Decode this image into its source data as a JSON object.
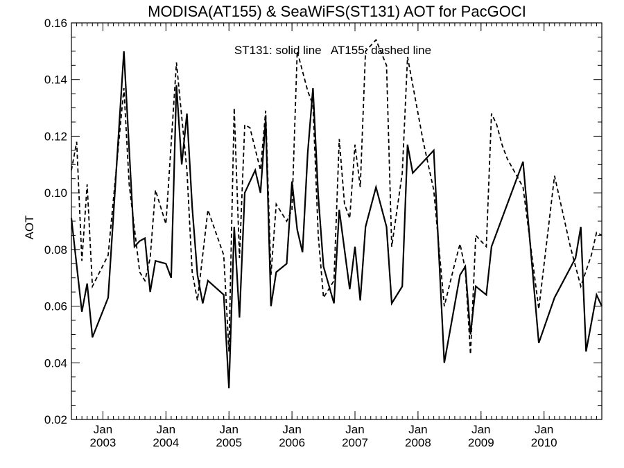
{
  "chart_data": {
    "type": "line",
    "title": "MODISA(AT155) & SeaWiFS(ST131)  AOT for PacGOCI",
    "ylabel": "AOT",
    "annotation": "ST131: solid line   AT155: dashed line",
    "ylim": [
      0.02,
      0.16
    ],
    "y_ticks": [
      "0.02",
      "0.04",
      "0.06",
      "0.08",
      "0.10",
      "0.12",
      "0.14",
      "0.16"
    ],
    "xlim": [
      "2002-07",
      "2010-12"
    ],
    "x_ticks": [
      {
        "month": "Jan",
        "year": "2003",
        "date": "2003-01"
      },
      {
        "month": "Jan",
        "year": "2004",
        "date": "2004-01"
      },
      {
        "month": "Jan",
        "year": "2005",
        "date": "2005-01"
      },
      {
        "month": "Jan",
        "year": "2006",
        "date": "2006-01"
      },
      {
        "month": "Jan",
        "year": "2007",
        "date": "2007-01"
      },
      {
        "month": "Jan",
        "year": "2008",
        "date": "2008-01"
      },
      {
        "month": "Jan",
        "year": "2009",
        "date": "2009-01"
      },
      {
        "month": "Jan",
        "year": "2010",
        "date": "2010-01"
      }
    ],
    "series": [
      {
        "style": "solid",
        "color": "#000000",
        "points": [
          [
            "2002-07",
            0.091
          ],
          [
            "2002-09",
            0.058
          ],
          [
            "2002-10",
            0.068
          ],
          [
            "2002-11",
            0.049
          ],
          [
            "2003-02",
            0.063
          ],
          [
            "2003-05",
            0.15
          ],
          [
            "2003-07",
            0.081
          ],
          [
            "2003-08",
            0.083
          ],
          [
            "2003-09",
            0.084
          ],
          [
            "2003-10",
            0.065
          ],
          [
            "2003-11",
            0.076
          ],
          [
            "2004-01",
            0.075
          ],
          [
            "2004-02",
            0.07
          ],
          [
            "2004-03",
            0.138
          ],
          [
            "2004-04",
            0.11
          ],
          [
            "2004-05",
            0.128
          ],
          [
            "2004-06",
            0.095
          ],
          [
            "2004-07",
            0.071
          ],
          [
            "2004-08",
            0.061
          ],
          [
            "2004-09",
            0.069
          ],
          [
            "2004-12",
            0.064
          ],
          [
            "2005-01",
            0.031
          ],
          [
            "2005-02",
            0.088
          ],
          [
            "2005-03",
            0.056
          ],
          [
            "2005-04",
            0.1
          ],
          [
            "2005-06",
            0.108
          ],
          [
            "2005-07",
            0.1
          ],
          [
            "2005-08",
            0.126
          ],
          [
            "2005-09",
            0.06
          ],
          [
            "2005-10",
            0.072
          ],
          [
            "2005-12",
            0.075
          ],
          [
            "2006-01",
            0.104
          ],
          [
            "2006-02",
            0.087
          ],
          [
            "2006-03",
            0.079
          ],
          [
            "2006-04",
            0.114
          ],
          [
            "2006-05",
            0.137
          ],
          [
            "2006-06",
            0.099
          ],
          [
            "2006-07",
            0.074
          ],
          [
            "2006-09",
            0.061
          ],
          [
            "2006-10",
            0.094
          ],
          [
            "2006-12",
            0.066
          ],
          [
            "2007-01",
            0.081
          ],
          [
            "2007-02",
            0.062
          ],
          [
            "2007-03",
            0.088
          ],
          [
            "2007-05",
            0.102
          ],
          [
            "2007-07",
            0.088
          ],
          [
            "2007-08",
            0.061
          ],
          [
            "2007-10",
            0.067
          ],
          [
            "2007-11",
            0.117
          ],
          [
            "2007-12",
            0.107
          ],
          [
            "2008-04",
            0.115
          ],
          [
            "2008-06",
            0.04
          ],
          [
            "2008-09",
            0.071
          ],
          [
            "2008-10",
            0.074
          ],
          [
            "2008-11",
            0.05
          ],
          [
            "2008-12",
            0.067
          ],
          [
            "2009-02",
            0.064
          ],
          [
            "2009-03",
            0.081
          ],
          [
            "2009-09",
            0.111
          ],
          [
            "2009-12",
            0.047
          ],
          [
            "2010-03",
            0.063
          ],
          [
            "2010-07",
            0.077
          ],
          [
            "2010-08",
            0.088
          ],
          [
            "2010-09",
            0.044
          ],
          [
            "2010-11",
            0.064
          ],
          [
            "2010-12",
            0.06
          ]
        ]
      },
      {
        "style": "dashed",
        "color": "#000000",
        "points": [
          [
            "2002-07",
            0.108
          ],
          [
            "2002-08",
            0.118
          ],
          [
            "2002-09",
            0.076
          ],
          [
            "2002-10",
            0.103
          ],
          [
            "2002-11",
            0.067
          ],
          [
            "2003-02",
            0.078
          ],
          [
            "2003-05",
            0.137
          ],
          [
            "2003-06",
            0.103
          ],
          [
            "2003-08",
            0.072
          ],
          [
            "2003-09",
            0.069
          ],
          [
            "2003-10",
            0.077
          ],
          [
            "2003-11",
            0.101
          ],
          [
            "2004-01",
            0.089
          ],
          [
            "2004-03",
            0.146
          ],
          [
            "2004-05",
            0.108
          ],
          [
            "2004-06",
            0.072
          ],
          [
            "2004-07",
            0.062
          ],
          [
            "2004-09",
            0.094
          ],
          [
            "2004-12",
            0.078
          ],
          [
            "2005-01",
            0.044
          ],
          [
            "2005-02",
            0.13
          ],
          [
            "2005-03",
            0.077
          ],
          [
            "2005-04",
            0.124
          ],
          [
            "2005-05",
            0.123
          ],
          [
            "2005-07",
            0.108
          ],
          [
            "2005-08",
            0.129
          ],
          [
            "2005-09",
            0.071
          ],
          [
            "2005-10",
            0.096
          ],
          [
            "2005-12",
            0.09
          ],
          [
            "2006-01",
            0.094
          ],
          [
            "2006-02",
            0.15
          ],
          [
            "2006-04",
            0.136
          ],
          [
            "2006-05",
            0.131
          ],
          [
            "2006-06",
            0.085
          ],
          [
            "2006-07",
            0.063
          ],
          [
            "2006-09",
            0.069
          ],
          [
            "2006-10",
            0.119
          ],
          [
            "2006-11",
            0.096
          ],
          [
            "2006-12",
            0.091
          ],
          [
            "2007-01",
            0.117
          ],
          [
            "2007-02",
            0.102
          ],
          [
            "2007-03",
            0.15
          ],
          [
            "2007-05",
            0.154
          ],
          [
            "2007-07",
            0.145
          ],
          [
            "2007-08",
            0.081
          ],
          [
            "2007-10",
            0.107
          ],
          [
            "2007-11",
            0.148
          ],
          [
            "2008-02",
            0.118
          ],
          [
            "2008-04",
            0.101
          ],
          [
            "2008-06",
            0.06
          ],
          [
            "2008-08",
            0.075
          ],
          [
            "2008-09",
            0.082
          ],
          [
            "2008-10",
            0.073
          ],
          [
            "2008-11",
            0.043
          ],
          [
            "2008-12",
            0.085
          ],
          [
            "2009-02",
            0.081
          ],
          [
            "2009-03",
            0.128
          ],
          [
            "2009-04",
            0.124
          ],
          [
            "2009-05",
            0.117
          ],
          [
            "2009-06",
            0.112
          ],
          [
            "2009-09",
            0.102
          ],
          [
            "2009-12",
            0.059
          ],
          [
            "2010-03",
            0.106
          ],
          [
            "2010-06",
            0.081
          ],
          [
            "2010-08",
            0.067
          ],
          [
            "2010-10",
            0.078
          ],
          [
            "2010-11",
            0.086
          ],
          [
            "2010-12",
            0.085
          ]
        ]
      }
    ],
    "grid": false
  }
}
